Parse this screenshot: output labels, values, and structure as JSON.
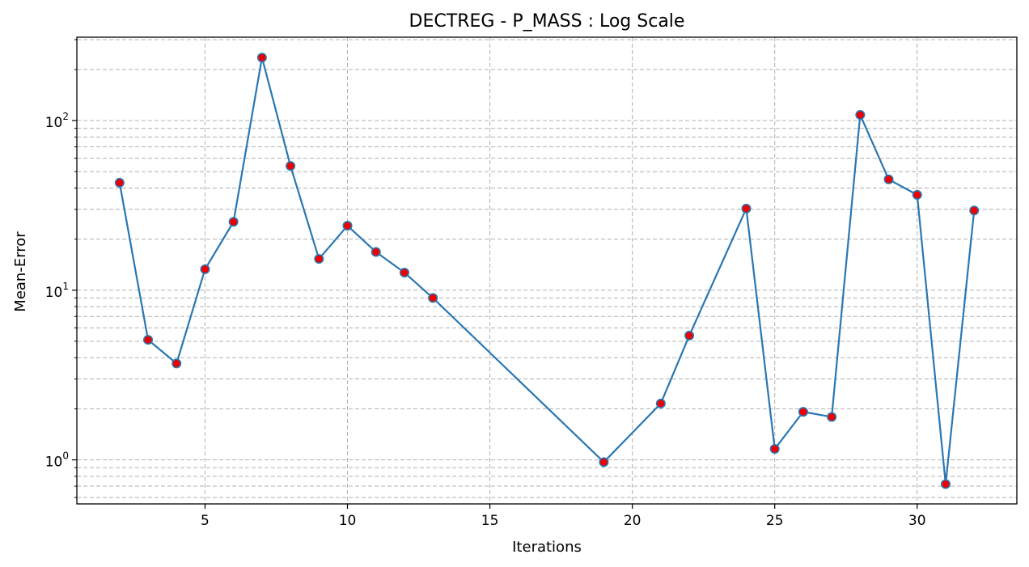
{
  "chart_data": {
    "type": "line",
    "title": "DECTREG - P_MASS : Log Scale",
    "xlabel": "Iterations",
    "ylabel": "Mean-Error",
    "yscale": "log",
    "xlim": [
      0.5,
      33.5
    ],
    "ylim": [
      0.55,
      310
    ],
    "x_ticks": [
      5,
      10,
      15,
      20,
      25,
      30
    ],
    "y_major_ticks": [
      1,
      10,
      100
    ],
    "y_major_tick_labels": [
      {
        "base": "10",
        "exp": "0"
      },
      {
        "base": "10",
        "exp": "1"
      },
      {
        "base": "10",
        "exp": "2"
      }
    ],
    "y_minor_ticks": [
      0.6,
      0.7,
      0.8,
      0.9,
      2,
      3,
      4,
      5,
      6,
      7,
      8,
      9,
      20,
      30,
      40,
      50,
      60,
      70,
      80,
      90,
      200,
      300
    ],
    "grid": true,
    "series": [
      {
        "line_color": "#2a77b1",
        "marker_face_color": "#ee0000",
        "marker_edge_color": "#2a77b1",
        "x": [
          2,
          3,
          4,
          5,
          6,
          7,
          8,
          9,
          10,
          11,
          12,
          13,
          19,
          21,
          22,
          24,
          25,
          26,
          27,
          28,
          29,
          30,
          31,
          32
        ],
        "y": [
          43,
          5.1,
          3.7,
          13.3,
          25.3,
          235,
          54,
          15.3,
          24,
          16.8,
          12.7,
          9.0,
          0.97,
          2.15,
          5.4,
          30.3,
          1.16,
          1.92,
          1.79,
          108,
          45,
          36.5,
          0.72,
          29.5
        ]
      }
    ]
  }
}
